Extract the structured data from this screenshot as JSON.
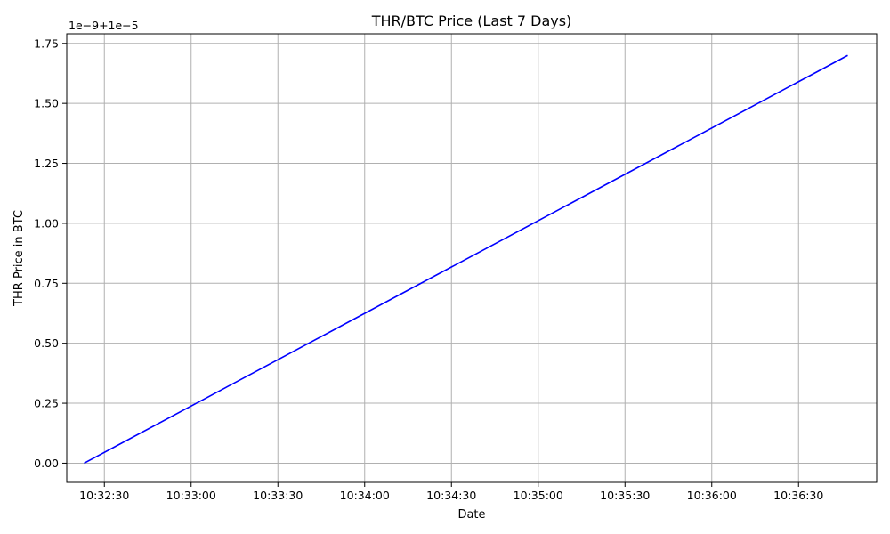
{
  "chart_data": {
    "type": "line",
    "title": "THR/BTC Price (Last 7 Days)",
    "xlabel": "Date",
    "ylabel": "THR Price in BTC",
    "y_offset_label": "1e−9+1e−5",
    "grid": true,
    "x_tick_labels": [
      "10:32:30",
      "10:33:00",
      "10:33:30",
      "10:34:00",
      "10:34:30",
      "10:35:00",
      "10:35:30",
      "10:36:00",
      "10:36:30"
    ],
    "y_tick_labels": [
      "0.00",
      "0.25",
      "0.50",
      "0.75",
      "1.00",
      "1.25",
      "1.50",
      "1.75"
    ],
    "series": [
      {
        "color": "#0000ff",
        "x": [
          "10:32:23",
          "10:36:47"
        ],
        "y": [
          0.0,
          1.7
        ]
      }
    ],
    "xlim": [
      "10:32:17",
      "10:36:57"
    ],
    "ylim": [
      -0.08,
      1.79
    ]
  }
}
